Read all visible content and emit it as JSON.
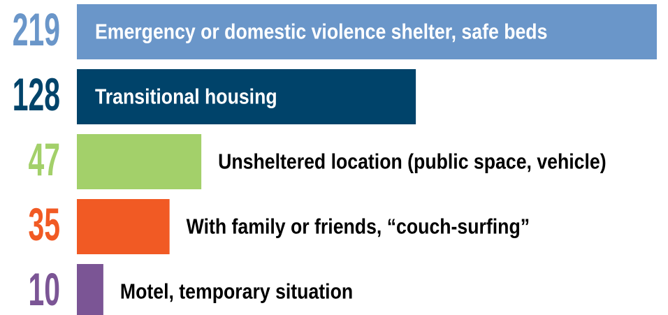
{
  "chart_data": {
    "type": "bar",
    "orientation": "horizontal",
    "categories": [
      "Emergency or domestic violence shelter, safe beds",
      "Transitional housing",
      "Unsheltered location (public space, vehicle)",
      "With family or friends, “couch-surfing”",
      "Motel, temporary situation"
    ],
    "values": [
      219,
      128,
      47,
      35,
      10
    ],
    "colors": [
      "#6a96c9",
      "#00436a",
      "#a3d06a",
      "#f15a24",
      "#7b5595"
    ]
  }
}
